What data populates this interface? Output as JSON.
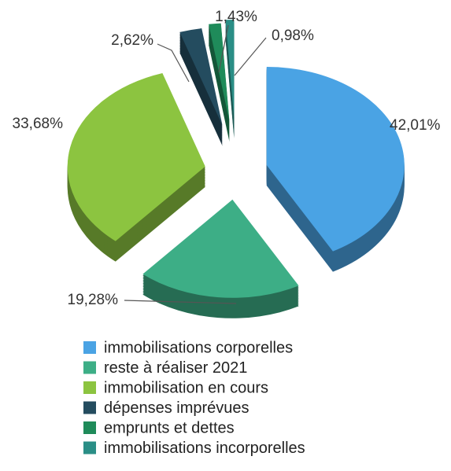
{
  "chart_data": {
    "type": "pie",
    "categories": [
      "immobilisations corporelles",
      "reste à réaliser 2021",
      "immobilisation en cours",
      "dépenses imprévues",
      "emprunts et dettes",
      "immobilisations incorporelles"
    ],
    "values": [
      42.01,
      19.28,
      33.68,
      2.62,
      1.43,
      0.98
    ],
    "value_labels": [
      "42,01%",
      "19,28%",
      "33,68%",
      "2,62%",
      "1,43%",
      "0,98%"
    ],
    "colors": [
      "#4aa3e4",
      "#3dae86",
      "#8cc440",
      "#244c5f",
      "#1f8b5a",
      "#2a8e86"
    ]
  }
}
